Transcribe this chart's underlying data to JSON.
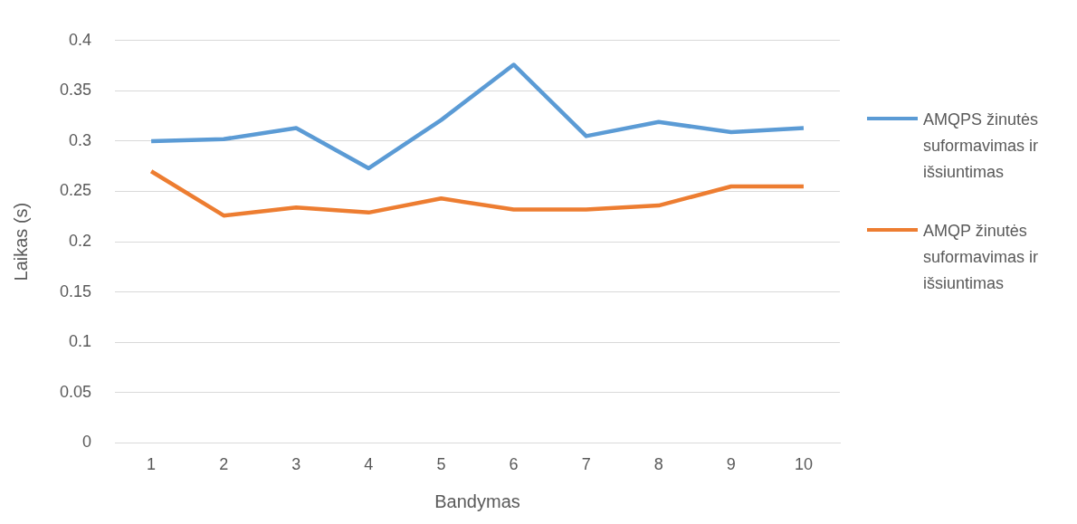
{
  "chart_data": {
    "type": "line",
    "xlabel": "Bandymas",
    "ylabel": "Laikas (s)",
    "categories": [
      "1",
      "2",
      "3",
      "4",
      "5",
      "6",
      "7",
      "8",
      "9",
      "10"
    ],
    "series": [
      {
        "name": "AMQPS žinutės suformavimas ir išsiuntimas",
        "color": "#5b9bd5",
        "values": [
          0.3,
          0.302,
          0.313,
          0.273,
          0.321,
          0.376,
          0.305,
          0.319,
          0.309,
          0.313
        ]
      },
      {
        "name": "AMQP žinutės suformavimas ir išsiuntimas",
        "color": "#ed7d31",
        "values": [
          0.27,
          0.226,
          0.234,
          0.229,
          0.243,
          0.232,
          0.232,
          0.236,
          0.255,
          0.255
        ]
      }
    ],
    "ylim": [
      0,
      0.4
    ],
    "yticks": [
      0,
      {
        "value": 0.05,
        "label": "0.05"
      },
      {
        "value": 0.1,
        "label": "0.1"
      },
      {
        "value": 0.15,
        "label": "0.15"
      },
      {
        "value": 0.2,
        "label": "0.2"
      },
      {
        "value": 0.25,
        "label": "0.25"
      },
      {
        "value": 0.3,
        "label": "0.3"
      },
      {
        "value": 0.35,
        "label": "0.35"
      },
      {
        "value": 0.4,
        "label": "0.4"
      }
    ],
    "grid": "y",
    "legend": "right"
  }
}
